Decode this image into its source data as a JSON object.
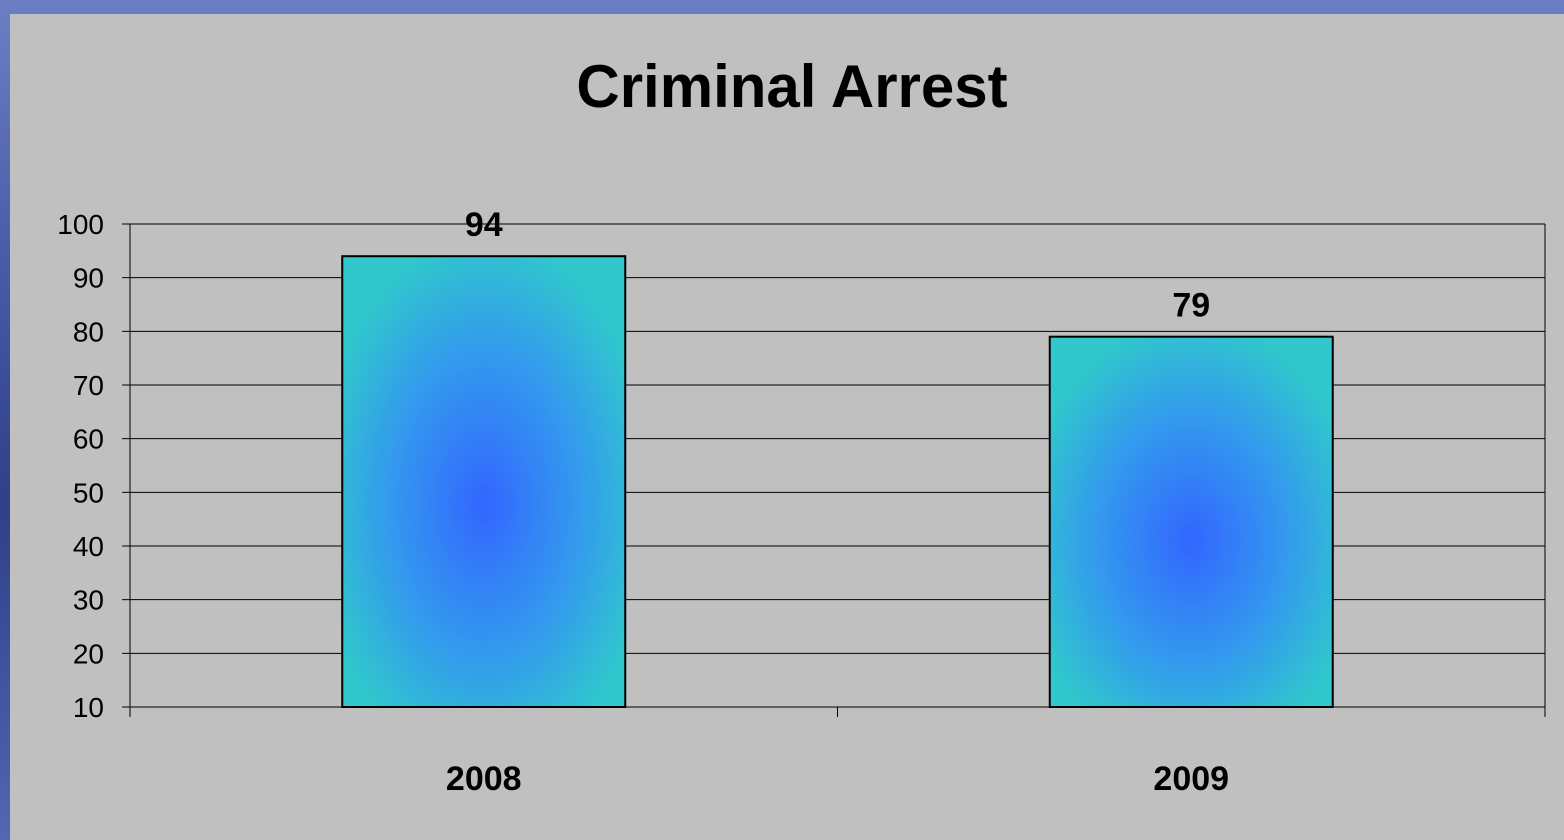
{
  "chart_data": {
    "type": "bar",
    "title": "Criminal Arrest",
    "categories": [
      "2008",
      "2009"
    ],
    "values": [
      94,
      79
    ],
    "data_labels": [
      "94",
      "79"
    ],
    "xlabel": "",
    "ylabel": "",
    "ylim": [
      10,
      100
    ],
    "yticks": [
      "100",
      "90",
      "80",
      "70",
      "60",
      "50",
      "40",
      "30",
      "20",
      "10"
    ],
    "grid": true,
    "legend": "none",
    "colors": {
      "bar_edge": "#30c8cc",
      "bar_center": "#3366ff",
      "panel": "#c0c0c0",
      "gridline": "#000000"
    }
  }
}
